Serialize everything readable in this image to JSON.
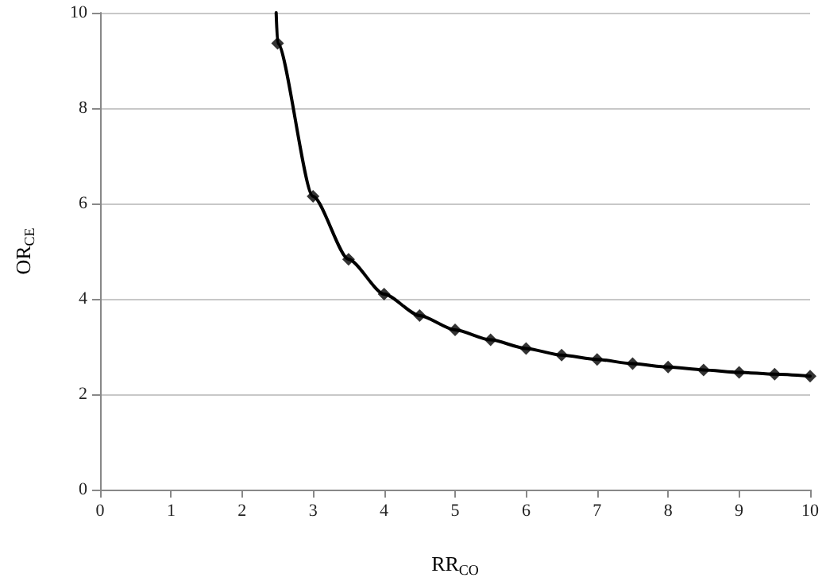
{
  "chart_data": {
    "type": "line",
    "xlabel": "RR$_{CO}$",
    "ylabel": "OR$_{CE}$",
    "xlim": [
      0,
      10
    ],
    "xticks": [
      0,
      1,
      2,
      3,
      4,
      5,
      6,
      7,
      8,
      9,
      10
    ],
    "ylim": [
      0,
      10
    ],
    "yticks": [
      0,
      2,
      4,
      6,
      8,
      10
    ],
    "grid": "y",
    "line_style": "solid",
    "series": [
      {
        "type": "line",
        "color": "#000000",
        "marker": "none",
        "x": [
          2.48,
          2.5,
          3,
          3.5,
          4,
          4.5,
          5,
          5.5,
          6,
          6.5,
          7,
          7.5,
          8,
          8.5,
          9,
          9.5,
          10
        ],
        "values": [
          10,
          9.36,
          6.15,
          4.83,
          4.1,
          3.65,
          3.35,
          3.14,
          2.96,
          2.82,
          2.73,
          2.64,
          2.57,
          2.51,
          2.46,
          2.42,
          2.38
        ]
      },
      {
        "type": "scatter",
        "color": "#000000",
        "marker": "diamond",
        "x": [
          2.5,
          3,
          3.5,
          4,
          4.5,
          5,
          5.5,
          6,
          6.5,
          7,
          7.5,
          8,
          8.5,
          9,
          9.5,
          10
        ],
        "values": [
          9.36,
          6.15,
          4.83,
          4.1,
          3.65,
          3.35,
          3.14,
          2.96,
          2.82,
          2.73,
          2.64,
          2.57,
          2.51,
          2.46,
          2.42,
          2.38
        ]
      }
    ]
  }
}
